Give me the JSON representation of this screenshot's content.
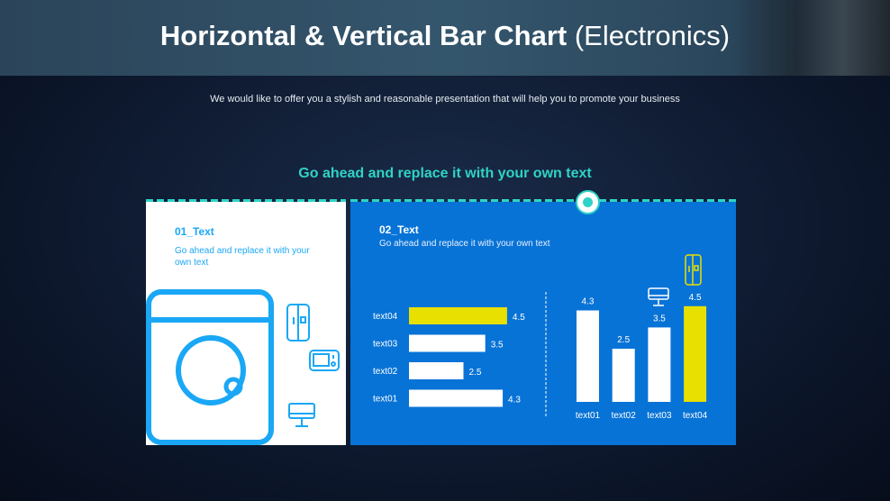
{
  "header": {
    "title_bold": "Horizontal & Vertical Bar Chart",
    "title_light": "(Electronics)"
  },
  "subtitle": "We would like to offer you a stylish and reasonable presentation that will help you to promote your business",
  "heading": "Go ahead and replace it with your own text",
  "left_card": {
    "title": "01_Text",
    "description": "Go ahead and replace it with your own text",
    "icons": [
      "washing-machine-icon",
      "refrigerator-icon",
      "microwave-icon",
      "monitor-icon"
    ]
  },
  "right_card": {
    "title": "02_Text",
    "description": "Go ahead and replace it with your own text"
  },
  "colors": {
    "accent": "#2fd3c6",
    "panel_blue": "#0873d6",
    "highlight": "#e8e000",
    "icon_blue": "#1aa7f5",
    "bar": "#ffffff"
  },
  "chart_data": [
    {
      "type": "bar",
      "orientation": "horizontal",
      "categories": [
        "text04",
        "text03",
        "text02",
        "text01"
      ],
      "values": [
        4.5,
        3.5,
        2.5,
        4.3
      ],
      "highlight": "text04",
      "data_labels": true
    },
    {
      "type": "bar",
      "orientation": "vertical",
      "categories": [
        "text01",
        "text02",
        "text03",
        "text04"
      ],
      "values": [
        4.3,
        2.5,
        3.5,
        4.5
      ],
      "highlight": "text04",
      "data_labels": true,
      "icons": {
        "text03": "monitor-icon",
        "text04": "refrigerator-icon"
      }
    }
  ]
}
